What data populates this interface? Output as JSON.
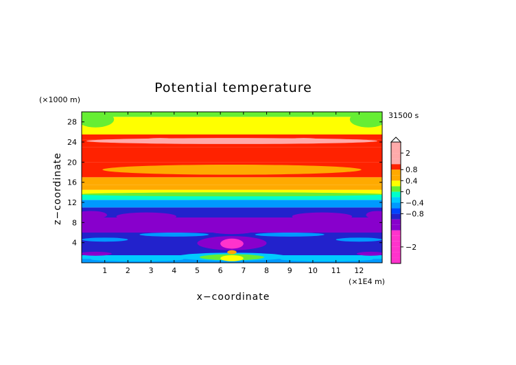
{
  "chart_data": {
    "type": "heatmap",
    "title": "Potential temperature",
    "xlabel": "x−coordinate",
    "ylabel": "z−coordinate",
    "x_unit": "(×1E4 m)",
    "y_unit": "(×1000 m)",
    "time_label": "31500 s",
    "xlim": [
      0,
      13
    ],
    "ylim": [
      0,
      30
    ],
    "x_ticks": [
      "1",
      "2",
      "3",
      "4",
      "5",
      "6",
      "7",
      "8",
      "9",
      "10",
      "11",
      "12"
    ],
    "y_ticks": [
      "4",
      "8",
      "12",
      "16",
      "20",
      "24",
      "28"
    ],
    "colorbar_levels": [
      -2.6,
      -2.4,
      -2.2,
      -2.0,
      -1.8,
      -1.6,
      -1.4,
      -1.2,
      -1.0,
      -0.8,
      -0.6,
      -0.4,
      -0.2,
      0.0,
      0.2,
      0.4,
      0.6,
      0.8,
      1.0,
      1.5,
      2.0,
      2.5,
      3.0
    ],
    "colorbar_labels": [
      "2",
      "0.8",
      "0.4",
      "0",
      "−0.4",
      "−0.8",
      "−2"
    ],
    "colorbar_label_values": [
      2.0,
      0.8,
      0.4,
      0.0,
      -0.4,
      -0.8,
      -2.0
    ],
    "vertical_profile": [
      {
        "z": 0.5,
        "value": -0.6
      },
      {
        "z": 1.0,
        "value": -0.3
      },
      {
        "z": 2.0,
        "value": -0.85
      },
      {
        "z": 4.0,
        "value": -0.9
      },
      {
        "z": 8.0,
        "value": -1.0
      },
      {
        "z": 10.0,
        "value": -0.95
      },
      {
        "z": 12.0,
        "value": -0.5
      },
      {
        "z": 13.0,
        "value": 0.0
      },
      {
        "z": 14.0,
        "value": 0.3
      },
      {
        "z": 15.0,
        "value": 0.5
      },
      {
        "z": 16.0,
        "value": 0.7
      },
      {
        "z": 18.0,
        "value": 0.85
      },
      {
        "z": 22.0,
        "value": 0.9
      },
      {
        "z": 24.0,
        "value": 1.0
      },
      {
        "z": 25.0,
        "value": 0.8
      },
      {
        "z": 26.0,
        "value": 0.4
      },
      {
        "z": 28.0,
        "value": 0.2
      },
      {
        "z": 30.0,
        "value": 0.1
      }
    ],
    "colors": {
      "magenta": "#ff33cc",
      "purple": "#8800cc",
      "dark_blue": "#2222cc",
      "blue": "#0044ff",
      "light_blue": "#0099ff",
      "cyan": "#00ccff",
      "teal": "#00ffcc",
      "green": "#66ee33",
      "yellow": "#ffff00",
      "orange": "#ffaa00",
      "red": "#ff2200",
      "pink": "#ffaaaa"
    }
  }
}
